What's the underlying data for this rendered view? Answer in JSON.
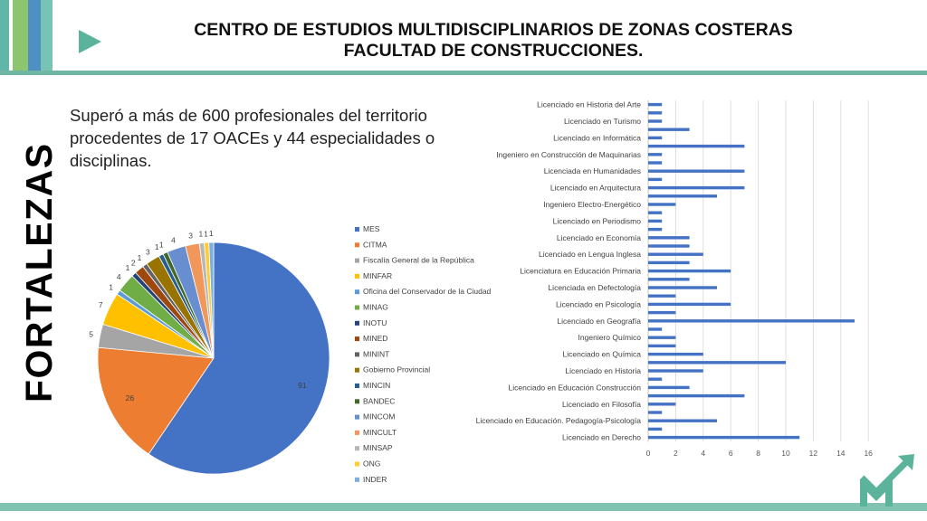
{
  "header": {
    "title_line1": "CENTRO DE ESTUDIOS MULTIDISCIPLINARIOS DE ZONAS COSTERAS",
    "title_line2": "FACULTAD DE CONSTRUCCIONES."
  },
  "side_title": "FORTALEZAS",
  "description": "Superó a más de 600 profesionales del territorio procedentes de 17 OACEs y 44 especialidades o disciplinas.",
  "chart_data": [
    {
      "type": "pie",
      "labels": [
        "MES",
        "CITMA",
        "Fiscalía General de la República",
        "MINFAR",
        "Oficina del Conservador de la Ciudad",
        "MINAG",
        "INOTU",
        "MINED",
        "MININT",
        "Gobierno Provincial",
        "MINCIN",
        "BANDEC",
        "MINCOM",
        "MINCULT",
        "MINSAP",
        "ONG",
        "INDER"
      ],
      "values": [
        91,
        26,
        5,
        7,
        1,
        4,
        1,
        2,
        1,
        3,
        1,
        1,
        4,
        3,
        1,
        1,
        1
      ],
      "colors": [
        "#4472c4",
        "#ed7d31",
        "#a5a5a5",
        "#ffc000",
        "#5b9bd5",
        "#70ad47",
        "#264478",
        "#9e480e",
        "#636363",
        "#997300",
        "#255e91",
        "#43682b",
        "#698ed0",
        "#f1975a",
        "#b7b7b7",
        "#ffcd33",
        "#7cafdd"
      ],
      "legend_position": "right"
    },
    {
      "type": "bar",
      "orientation": "horizontal",
      "categories": [
        "Licenciado en Historia del Arte",
        "",
        "Licenciado en Turismo",
        "",
        "Licenciado en Informática",
        "",
        "Ingeniero en Construcción de Maquinarias",
        "",
        "Licenciada en Humanidades",
        "",
        "Licenciado en Arquitectura",
        "",
        "Ingeniero Electro-Energético",
        "",
        "Licenciado en Periodismo",
        "",
        "Licenciado en Economía",
        "",
        "Licenciado en Lengua Inglesa",
        "",
        "Licenciatura en Educación Primaria",
        "",
        "Licenciada en Defectología",
        "",
        "Licenciado en Psicología",
        "",
        "Licenciado en Geografía",
        "",
        "Ingeniero Químico",
        "",
        "Licenciado en Química",
        "",
        "Licenciado en Historia",
        "",
        "Licenciado en Educación Construcción",
        "",
        "Licenciado en Filosofía",
        "",
        "Licenciado en Educación. Pedagogía-Psicología",
        "",
        "Licenciado en Derecho"
      ],
      "values": [
        1,
        1,
        1,
        3,
        1,
        7,
        1,
        1,
        7,
        1,
        7,
        5,
        2,
        1,
        1,
        1,
        3,
        3,
        4,
        3,
        6,
        3,
        5,
        2,
        6,
        2,
        15,
        1,
        2,
        2,
        4,
        10,
        4,
        1,
        3,
        7,
        2,
        1,
        5,
        1,
        11
      ],
      "xlim": [
        0,
        16
      ],
      "xticks": [
        0,
        2,
        4,
        6,
        8,
        10,
        12,
        14,
        16
      ],
      "grid": true,
      "color": "#4472c4"
    }
  ]
}
